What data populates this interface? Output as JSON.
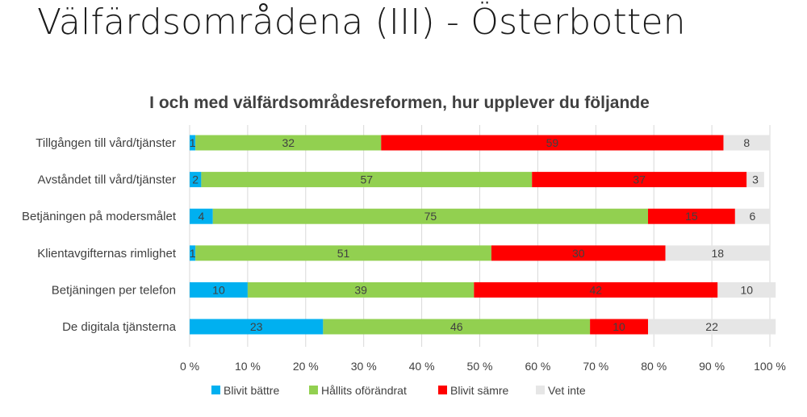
{
  "slide": {
    "title": "Välfärdsområdena (III) - Österbotten"
  },
  "chart_data": {
    "type": "bar",
    "orientation": "horizontal",
    "stacked": true,
    "title": "I och med välfärdsområdesreformen, hur upplever du följande",
    "categories": [
      "Tillgången till vård/tjänster",
      "Avståndet till vård/tjänster",
      "Betjäningen på modersmålet",
      "Klientavgifternas rimlighet",
      "Betjäningen per telefon",
      "De digitala tjänsterna"
    ],
    "series": [
      {
        "name": "Blivit bättre",
        "color": "#00b0f0",
        "values": [
          1,
          2,
          4,
          1,
          10,
          23
        ]
      },
      {
        "name": "Hållits oförändrat",
        "color": "#92d050",
        "values": [
          32,
          57,
          75,
          51,
          39,
          46
        ]
      },
      {
        "name": "Blivit sämre",
        "color": "#ff0000",
        "values": [
          59,
          37,
          15,
          30,
          42,
          10
        ]
      },
      {
        "name": "Vet inte",
        "color": "#e6e6e6",
        "values": [
          8,
          3,
          6,
          18,
          10,
          22
        ]
      }
    ],
    "xlim": [
      0,
      100
    ],
    "xticks": [
      "0 %",
      "10 %",
      "20 %",
      "30 %",
      "40 %",
      "50 %",
      "60 %",
      "70 %",
      "80 %",
      "90 %",
      "100 %"
    ],
    "grid": true,
    "legend": "bottom"
  }
}
